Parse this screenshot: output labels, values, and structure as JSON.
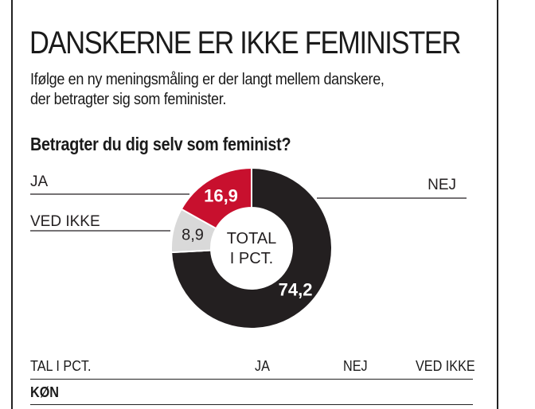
{
  "header": {
    "title": "DANSKERNE ER IKKE FEMINISTER",
    "subtitle_line1": "Ifølge en ny meningsmåling er der langt mellem danskere,",
    "subtitle_line2": "der betragter sig som feminister."
  },
  "chart_data": {
    "type": "pie",
    "subtype": "donut",
    "title": "Betragter du dig selv som feminist?",
    "center_label_line1": "TOTAL",
    "center_label_line2": "I PCT.",
    "slices": [
      {
        "label": "NEJ",
        "value": 74.2,
        "value_label": "74,2",
        "color": "#231f20",
        "text_color": "#ffffff"
      },
      {
        "label": "VED IKKE",
        "value": 8.9,
        "value_label": "8,9",
        "color": "#d9d9d9",
        "text_color": "#231f20"
      },
      {
        "label": "JA",
        "value": 16.9,
        "value_label": "16,9",
        "color": "#c8102e",
        "text_color": "#ffffff"
      }
    ]
  },
  "table": {
    "unit_label": "TAL I PCT.",
    "columns": [
      "JA",
      "NEJ",
      "VED IKKE"
    ],
    "first_row_label": "KØN"
  },
  "colors": {
    "accent_red": "#c8102e",
    "dark": "#231f20",
    "light_gray": "#d9d9d9"
  }
}
